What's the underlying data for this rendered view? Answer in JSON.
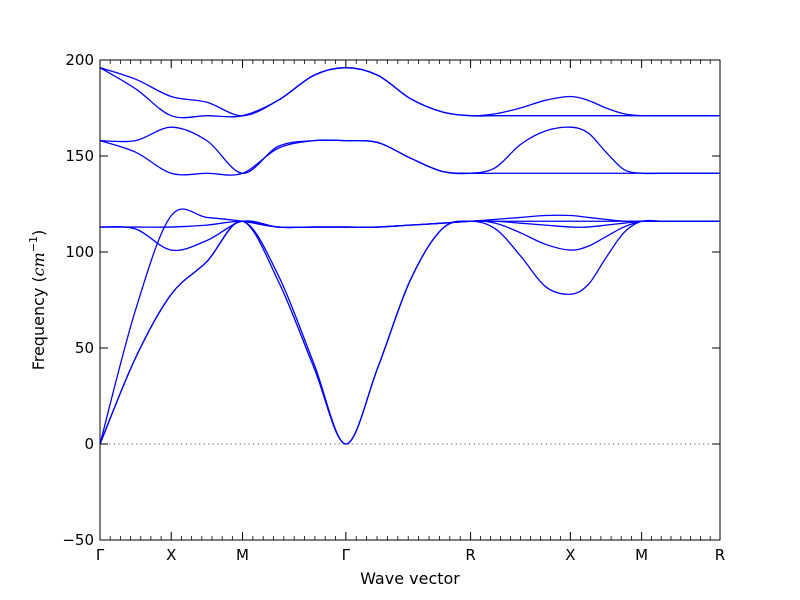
{
  "chart_data": {
    "type": "line",
    "title": "",
    "xlabel": "Wave vector",
    "ylabel": {
      "prefix": "Frequency (",
      "unit": "cm",
      "exponent": "−1",
      "suffix": ")"
    },
    "ylim": [
      -50,
      200
    ],
    "yticks": [
      -50,
      0,
      50,
      100,
      150,
      200
    ],
    "ytick_labels": [
      "−50",
      "0",
      "50",
      "100",
      "150",
      "200"
    ],
    "xlim": [
      0,
      8.7
    ],
    "xticks": [
      {
        "x": 0.0,
        "label": "Γ"
      },
      {
        "x": 1.0,
        "label": "X"
      },
      {
        "x": 2.0,
        "label": "M"
      },
      {
        "x": 3.45,
        "label": "Γ"
      },
      {
        "x": 5.2,
        "label": "R"
      },
      {
        "x": 6.6,
        "label": "X"
      },
      {
        "x": 7.6,
        "label": "M"
      },
      {
        "x": 8.7,
        "label": "R"
      }
    ],
    "zero_line": 0,
    "line_color": "#0000ff",
    "zero_line_color": "#777777",
    "grid": false,
    "series": [
      {
        "x": [
          0,
          0.5,
          1,
          1.5,
          2,
          2.5,
          3,
          3.45,
          3.9,
          4.35,
          4.8,
          5.2,
          5.55,
          5.9,
          6.25,
          6.6,
          6.85,
          7.1,
          7.35,
          7.6,
          7.9,
          8.2,
          8.45,
          8.7
        ],
        "y": [
          0,
          45,
          78,
          95,
          116,
          85,
          40,
          0,
          40,
          85,
          112,
          116,
          112,
          98,
          82,
          78,
          83,
          97,
          110,
          116,
          116,
          116,
          116,
          116
        ]
      },
      {
        "x": [
          0,
          0.5,
          1,
          1.5,
          2,
          2.5,
          3,
          3.45,
          3.9,
          4.35,
          4.8,
          5.2,
          5.55,
          5.9,
          6.25,
          6.6,
          6.85,
          7.1,
          7.35,
          7.6,
          7.9,
          8.2,
          8.45,
          8.7
        ],
        "y": [
          0,
          45,
          78,
          95,
          116,
          88,
          42,
          0,
          40,
          85,
          112,
          116,
          115,
          110,
          104,
          101,
          103,
          108,
          113,
          116,
          116,
          116,
          116,
          116
        ]
      },
      {
        "x": [
          0,
          0.5,
          1,
          1.5,
          2,
          2.5,
          3,
          3.45,
          3.9,
          4.35,
          4.8,
          5.2,
          5.55,
          5.9,
          6.25,
          6.6,
          6.85,
          7.1,
          7.35,
          7.6,
          7.9,
          8.2,
          8.45,
          8.7
        ],
        "y": [
          0,
          70,
          119,
          118,
          116,
          113,
          113,
          113,
          113,
          114,
          115,
          116,
          116,
          115,
          114,
          113,
          113,
          114,
          115,
          116,
          116,
          116,
          116,
          116
        ]
      },
      {
        "x": [
          0,
          0.5,
          1,
          1.5,
          2,
          2.5,
          3,
          3.45,
          3.9,
          4.35,
          4.8,
          5.2,
          5.55,
          5.9,
          6.25,
          6.6,
          6.85,
          7.1,
          7.35,
          7.6,
          7.9,
          8.2,
          8.45,
          8.7
        ],
        "y": [
          113,
          112,
          101,
          106,
          116,
          113,
          113,
          113,
          113,
          114,
          115,
          116,
          117,
          118,
          119,
          119,
          118,
          117,
          116,
          116,
          116,
          116,
          116,
          116
        ]
      },
      {
        "x": [
          0,
          0.5,
          1,
          1.5,
          2,
          2.5,
          3,
          3.45,
          3.9,
          4.35,
          4.8,
          5.2,
          5.55,
          5.9,
          6.25,
          6.6,
          6.85,
          7.1,
          7.35,
          7.6,
          7.9,
          8.2,
          8.45,
          8.7
        ],
        "y": [
          113,
          113,
          113,
          114,
          116,
          113,
          113,
          113,
          113,
          114,
          115,
          116,
          116,
          116,
          116,
          116,
          116,
          116,
          116,
          116,
          116,
          116,
          116,
          116
        ]
      },
      {
        "x": [
          0,
          0.5,
          1,
          1.5,
          2,
          2.5,
          3,
          3.45,
          3.9,
          4.35,
          4.8,
          5.2,
          5.55,
          5.9,
          6.25,
          6.6,
          6.85,
          7.1,
          7.35,
          7.6,
          7.9,
          8.2,
          8.45,
          8.7
        ],
        "y": [
          158,
          152,
          141,
          141,
          141,
          154,
          158,
          158,
          157,
          149,
          142,
          141,
          141,
          141,
          141,
          141,
          141,
          141,
          141,
          141,
          141,
          141,
          141,
          141
        ]
      },
      {
        "x": [
          0,
          0.5,
          1,
          1.5,
          2,
          2.5,
          3,
          3.45,
          3.9,
          4.35,
          4.8,
          5.2,
          5.55,
          5.9,
          6.25,
          6.6,
          6.85,
          7.1,
          7.35,
          7.6,
          7.9,
          8.2,
          8.45,
          8.7
        ],
        "y": [
          158,
          158,
          165,
          158,
          141,
          155,
          158,
          158,
          157,
          149,
          142,
          141,
          144,
          156,
          163,
          165,
          162,
          152,
          143,
          141,
          141,
          141,
          141,
          141
        ]
      },
      {
        "x": [
          0,
          0.5,
          1,
          1.5,
          2,
          2.5,
          3,
          3.45,
          3.9,
          4.35,
          4.8,
          5.2,
          5.55,
          5.9,
          6.25,
          6.6,
          6.85,
          7.1,
          7.35,
          7.6,
          7.9,
          8.2,
          8.45,
          8.7
        ],
        "y": [
          196,
          185,
          171,
          171,
          171,
          179,
          192,
          196,
          192,
          180,
          173,
          171,
          171,
          171,
          171,
          171,
          171,
          171,
          171,
          171,
          171,
          171,
          171,
          171
        ]
      },
      {
        "x": [
          0,
          0.5,
          1,
          1.5,
          2,
          2.5,
          3,
          3.45,
          3.9,
          4.35,
          4.8,
          5.2,
          5.55,
          5.9,
          6.25,
          6.6,
          6.85,
          7.1,
          7.35,
          7.6,
          7.9,
          8.2,
          8.45,
          8.7
        ],
        "y": [
          196,
          190,
          181,
          178,
          171,
          179,
          192,
          196,
          192,
          180,
          173,
          171,
          172,
          175,
          179,
          181,
          179,
          175,
          172,
          171,
          171,
          171,
          171,
          171
        ]
      }
    ]
  }
}
